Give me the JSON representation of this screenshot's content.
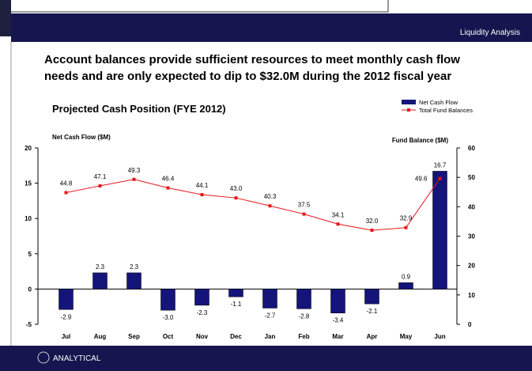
{
  "header": {
    "section": "Liquidity Analysis",
    "headline": [
      "Account balances provide sufficient resources to meet monthly cash flow",
      "needs and are only expected to dip to $32.0M during the 2012 fiscal year"
    ]
  },
  "footer": {
    "logo": "ANALYTICAL"
  },
  "chart_data": {
    "type": "bar_line",
    "title": "Projected Cash Position (FYE 2012)",
    "ylabel": "Net Cash Flow ($M)",
    "y2label": "Fund Balance ($M)",
    "categories": [
      "Jul",
      "Aug",
      "Sep",
      "Oct",
      "Nov",
      "Dec",
      "Jan",
      "Feb",
      "Mar",
      "Apr",
      "May",
      "Jun"
    ],
    "series": [
      {
        "name": "Net Cash Flow",
        "color": "#14147a",
        "values": [
          -2.9,
          2.3,
          2.3,
          -3.0,
          -2.3,
          -1.1,
          -2.7,
          -2.8,
          -3.4,
          -2.1,
          0.9,
          16.7
        ],
        "value_labels": [
          "-2.9",
          "2.3",
          "2.3",
          "-3.0",
          "-2.3",
          "-1.1",
          "-2.7",
          "-2.8",
          "-3.4",
          "-2.1",
          "0.9",
          "16.7"
        ]
      },
      {
        "name": "Total Fund Balances",
        "color": "#e8161b",
        "axis": "y2",
        "values": [
          44.8,
          47.1,
          49.3,
          46.4,
          44.1,
          43.0,
          40.3,
          37.5,
          34.1,
          32.0,
          32.9,
          49.6
        ],
        "value_labels": [
          "44.8",
          "47.1",
          "49.3",
          "46.4",
          "44.1",
          "43.0",
          "40.3",
          "37.5",
          "34.1",
          "32.0",
          "32.9",
          "49.6"
        ]
      }
    ],
    "ylim": [
      -5,
      20
    ],
    "yticks": [
      -5,
      0,
      5,
      10,
      15,
      20
    ],
    "y2lim": [
      0,
      60
    ],
    "y2ticks": [
      0,
      10,
      20,
      30,
      40,
      50,
      60
    ],
    "legend": "upper right"
  }
}
